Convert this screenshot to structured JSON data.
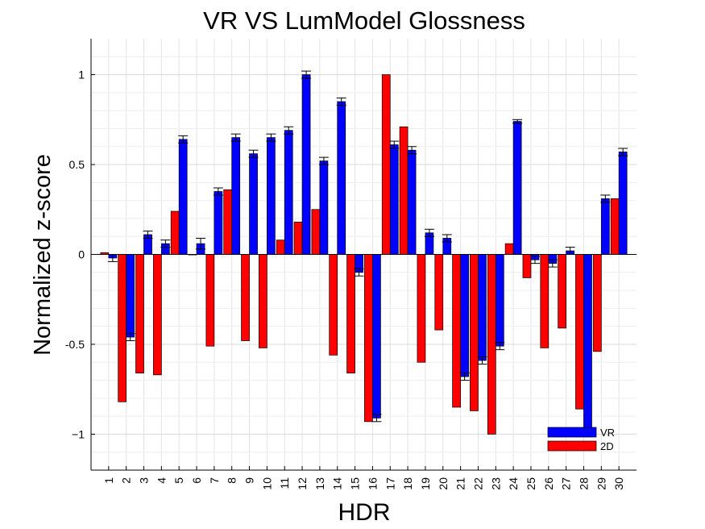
{
  "chart_data": {
    "type": "bar",
    "title": "VR VS LumModel Glossness",
    "xlabel": "HDR",
    "ylabel": "Normalized z-score",
    "ylim": [
      -1.2,
      1.2
    ],
    "yticks": [
      1,
      0.5,
      0,
      -0.5,
      -1
    ],
    "ytick_labels": [
      "1",
      "0.5",
      "0",
      "-0.5",
      "−1"
    ],
    "grid": true,
    "legend": "bottom-right",
    "categories": [
      "1",
      "2",
      "3",
      "4",
      "5",
      "6",
      "7",
      "8",
      "9",
      "10",
      "11",
      "12",
      "13",
      "14",
      "15",
      "16",
      "17",
      "18",
      "19",
      "20",
      "21",
      "22",
      "23",
      "24",
      "25",
      "26",
      "27",
      "28",
      "29",
      "30"
    ],
    "series": [
      {
        "name": "2D",
        "color": "#ff0000",
        "values": [
          0.01,
          -0.82,
          -0.66,
          -0.67,
          0.24,
          0.0,
          -0.51,
          0.36,
          -0.48,
          -0.52,
          0.08,
          0.18,
          0.25,
          -0.56,
          -0.66,
          -0.93,
          1.0,
          0.71,
          -0.6,
          -0.42,
          -0.85,
          -0.87,
          -1.0,
          0.06,
          -0.13,
          -0.52,
          -0.41,
          -0.86,
          -0.54,
          0.31
        ],
        "errors": [
          0,
          0,
          0,
          0,
          0,
          0,
          0,
          0,
          0,
          0,
          0,
          0,
          0,
          0,
          0,
          0,
          0,
          0,
          0,
          0,
          0,
          0,
          0,
          0,
          0,
          0,
          0,
          0,
          0,
          0
        ]
      },
      {
        "name": "VR",
        "color": "#0000ff",
        "values": [
          -0.02,
          -0.46,
          0.11,
          0.06,
          0.64,
          0.06,
          0.35,
          0.65,
          0.56,
          0.65,
          0.69,
          1.0,
          0.52,
          0.85,
          -0.1,
          -0.91,
          0.61,
          0.58,
          0.12,
          0.09,
          -0.68,
          -0.59,
          -0.51,
          0.74,
          -0.03,
          -0.05,
          0.02,
          -1.0,
          0.31,
          0.57
        ],
        "errors": [
          0.02,
          0.02,
          0.02,
          0.02,
          0.02,
          0.03,
          0.02,
          0.02,
          0.02,
          0.02,
          0.02,
          0.02,
          0.02,
          0.02,
          0.02,
          0.02,
          0.02,
          0.02,
          0.02,
          0.02,
          0.02,
          0.02,
          0.02,
          0.01,
          0.02,
          0.02,
          0.02,
          0.0,
          0.02,
          0.02
        ]
      }
    ]
  }
}
